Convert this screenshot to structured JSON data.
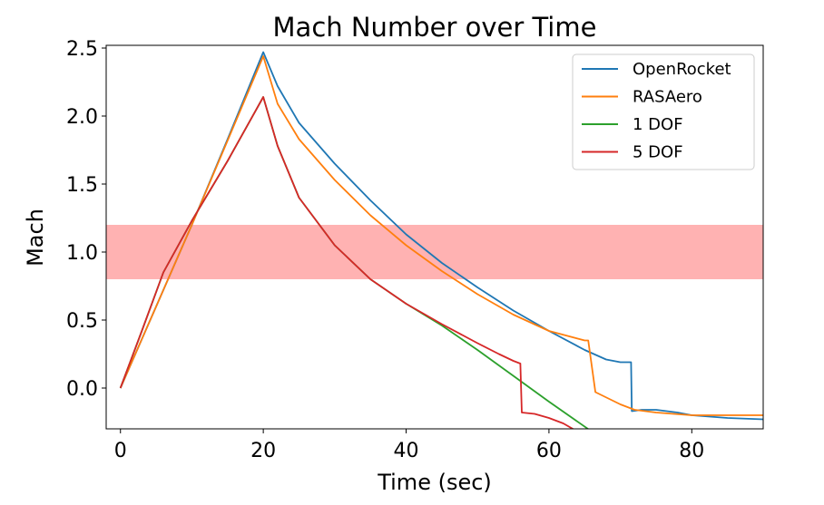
{
  "chart_data": {
    "type": "line",
    "title": "Mach Number over Time",
    "xlabel": "Time (sec)",
    "ylabel": "Mach",
    "xlim": [
      -2,
      90
    ],
    "ylim": [
      -0.3,
      2.52
    ],
    "xticks": [
      0,
      20,
      40,
      60,
      80
    ],
    "yticks": [
      0.0,
      0.5,
      1.0,
      1.5,
      2.0,
      2.5
    ],
    "xtick_labels": [
      "0",
      "20",
      "40",
      "60",
      "80"
    ],
    "ytick_labels": [
      "0.0",
      "0.5",
      "1.0",
      "1.5",
      "2.0",
      "2.5"
    ],
    "grid": false,
    "legend_position": "top-right",
    "shaded_band": {
      "y_min": 0.8,
      "y_max": 1.2,
      "color": "#ffb2b2"
    },
    "series": [
      {
        "name": "OpenRocket",
        "color": "#1f77b4",
        "x": [
          0,
          5,
          10,
          15,
          20,
          22,
          25,
          30,
          35,
          40,
          45,
          50,
          55,
          60,
          65,
          68,
          70,
          71.5,
          71.6,
          73,
          75,
          78,
          80,
          85,
          90
        ],
        "y": [
          0.0,
          0.6,
          1.2,
          1.83,
          2.47,
          2.22,
          1.95,
          1.65,
          1.38,
          1.13,
          0.92,
          0.74,
          0.57,
          0.42,
          0.28,
          0.21,
          0.19,
          0.19,
          -0.17,
          -0.16,
          -0.16,
          -0.18,
          -0.2,
          -0.22,
          -0.23
        ]
      },
      {
        "name": "RASAero",
        "color": "#ff7f0e",
        "x": [
          0,
          5,
          10,
          15,
          20,
          22,
          25,
          30,
          35,
          40,
          45,
          50,
          55,
          60,
          65,
          65.5,
          66.5,
          70,
          72,
          75,
          80,
          85,
          90
        ],
        "y": [
          0.0,
          0.6,
          1.2,
          1.82,
          2.44,
          2.09,
          1.83,
          1.53,
          1.27,
          1.05,
          0.86,
          0.69,
          0.54,
          0.42,
          0.35,
          0.35,
          -0.03,
          -0.12,
          -0.16,
          -0.18,
          -0.2,
          -0.2,
          -0.2
        ]
      },
      {
        "name": "1 DOF",
        "color": "#2ca02c",
        "x": [
          0,
          3,
          6,
          10,
          15,
          20,
          22,
          25,
          30,
          35,
          40,
          45,
          50,
          55,
          60,
          66
        ],
        "y": [
          0.0,
          0.42,
          0.85,
          1.23,
          1.67,
          2.14,
          1.78,
          1.4,
          1.05,
          0.8,
          0.62,
          0.46,
          0.28,
          0.09,
          -0.1,
          -0.32
        ]
      },
      {
        "name": "5 DOF",
        "color": "#d62728",
        "x": [
          0,
          3,
          6,
          10,
          15,
          20,
          22,
          25,
          30,
          35,
          40,
          45,
          50,
          53,
          55,
          56,
          56.2,
          58,
          60,
          62,
          64
        ],
        "y": [
          0.0,
          0.42,
          0.85,
          1.23,
          1.67,
          2.14,
          1.78,
          1.4,
          1.05,
          0.8,
          0.62,
          0.47,
          0.33,
          0.25,
          0.2,
          0.18,
          -0.18,
          -0.19,
          -0.22,
          -0.26,
          -0.32
        ]
      }
    ]
  }
}
